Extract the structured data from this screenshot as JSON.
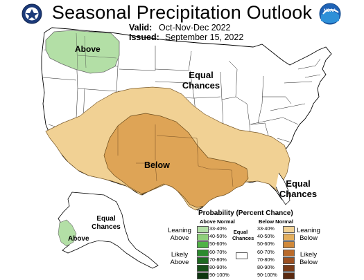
{
  "title": "Seasonal Precipitation Outlook",
  "valid_label": "Valid:",
  "valid_value": "Oct-Nov-Dec 2022",
  "issued_label": "Issued:",
  "issued_value": "September 15, 2022",
  "logos": {
    "left": "doc-seal-icon",
    "right": "noaa-logo-icon",
    "right_text": "NOAA"
  },
  "map_labels": {
    "above_nw": "Above",
    "equal_1": "Equal",
    "chances_1": "Chances",
    "below_center": "Below",
    "equal_se_1": "Equal",
    "equal_se_2": "Chances",
    "alaska_equal_1": "Equal",
    "alaska_equal_2": "Chances",
    "alaska_above": "Above"
  },
  "legend": {
    "title": "Probability (Percent Chance)",
    "above_head": "Above Normal",
    "below_head": "Below Normal",
    "equal_label_1": "Equal",
    "equal_label_2": "Chances",
    "leaning_above_1": "Leaning",
    "leaning_above_2": "Above",
    "likely_above_1": "Likely",
    "likely_above_2": "Above",
    "leaning_below_1": "Leaning",
    "leaning_below_2": "Below",
    "likely_below_1": "Likely",
    "likely_below_2": "Below",
    "rows": [
      "33-40%",
      "40-50%",
      "50-60%",
      "60-70%",
      "70-80%",
      "80-90%",
      "90-100%"
    ],
    "above_colors": [
      "#b3dfa6",
      "#8fd07a",
      "#50b246",
      "#2c8a2e",
      "#1e6a21",
      "#164f18",
      "#0d3510"
    ],
    "below_colors": [
      "#f1d194",
      "#e3ae5c",
      "#d0893a",
      "#ba6a2a",
      "#9c5022",
      "#7a3b18",
      "#5a2a10"
    ],
    "equal_color": "#ffffff"
  },
  "colors": {
    "above_33_40": "#b3dfa6",
    "below_33_40": "#f1d194",
    "below_40_50": "#dea456"
  }
}
